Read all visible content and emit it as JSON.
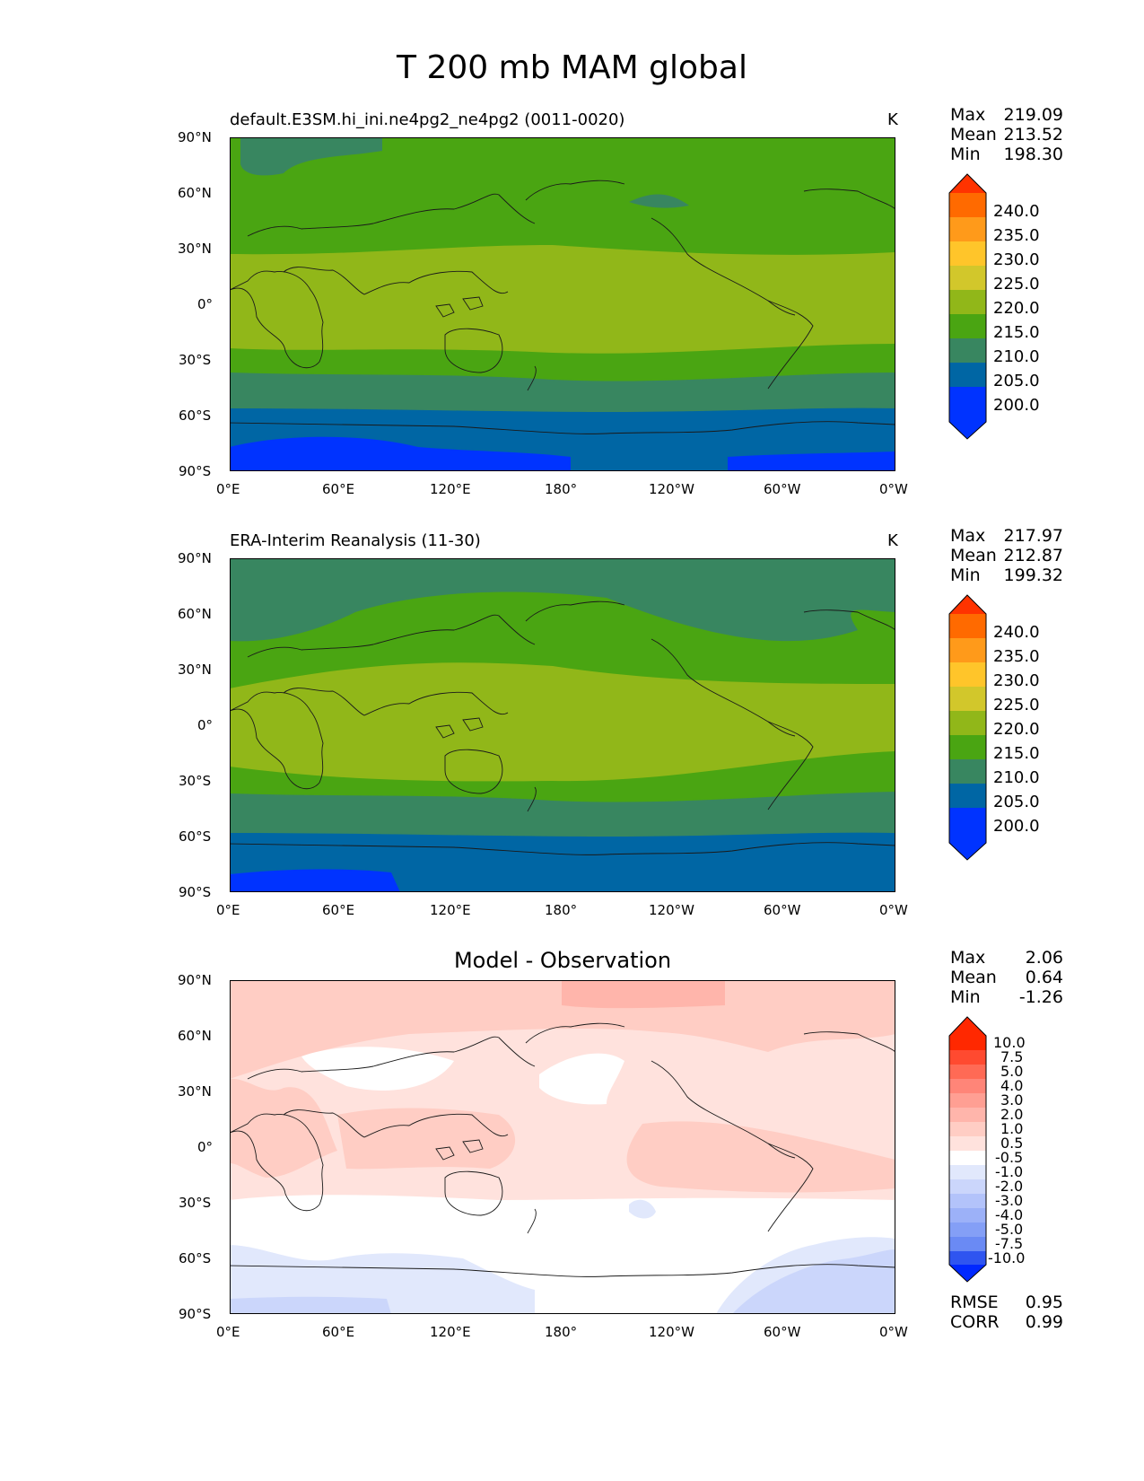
{
  "figure": {
    "title": "T 200 mb MAM global"
  },
  "axes": {
    "lat_ticks": [
      "90°N",
      "60°N",
      "30°N",
      "0°",
      "30°S",
      "60°S",
      "90°S"
    ],
    "lon_ticks": [
      "0°E",
      "60°E",
      "120°E",
      "180°",
      "120°W",
      "60°W",
      "0°W"
    ]
  },
  "panels": [
    {
      "title_left": "default.E3SM.hi_ini.ne4pg2_ne4pg2 (0011-0020)",
      "units": "K",
      "stats": {
        "max_label": "Max",
        "max": "219.09",
        "mean_label": "Mean",
        "mean": "213.52",
        "min_label": "Min",
        "min": "198.30"
      },
      "colorbar": {
        "labels": [
          "240.0",
          "235.0",
          "230.0",
          "225.0",
          "220.0",
          "215.0",
          "210.0",
          "205.0",
          "200.0"
        ]
      }
    },
    {
      "title_left": "ERA-Interim Reanalysis (11-30)",
      "units": "K",
      "stats": {
        "max_label": "Max",
        "max": "217.97",
        "mean_label": "Mean",
        "mean": "212.87",
        "min_label": "Min",
        "min": "199.32"
      },
      "colorbar": {
        "labels": [
          "240.0",
          "235.0",
          "230.0",
          "225.0",
          "220.0",
          "215.0",
          "210.0",
          "205.0",
          "200.0"
        ]
      }
    },
    {
      "title_center": "Model - Observation",
      "stats": {
        "max_label": "Max",
        "max": "2.06",
        "mean_label": "Mean",
        "mean": "0.64",
        "min_label": "Min",
        "min": "-1.26"
      },
      "colorbar": {
        "labels": [
          "10.0",
          "7.5",
          "5.0",
          "4.0",
          "3.0",
          "2.0",
          "1.0",
          "0.5",
          "-0.5",
          "-1.0",
          "-2.0",
          "-3.0",
          "-4.0",
          "-5.0",
          "-7.5",
          "-10.0"
        ]
      },
      "metrics": {
        "rmse_label": "RMSE",
        "rmse": "0.95",
        "corr_label": "CORR",
        "corr": "0.99"
      }
    }
  ],
  "colors": {
    "abs_levels": [
      "#ff3300",
      "#ff6a00",
      "#ff9a1a",
      "#ffc52a",
      "#d2c72b",
      "#91b719",
      "#4aa512",
      "#388660",
      "#0066a4",
      "#0033ff"
    ],
    "diff_levels": [
      "#ff2800",
      "#ff4a30",
      "#ff6a55",
      "#ff8578",
      "#ff9f93",
      "#ffb5ab",
      "#ffcdc4",
      "#ffe2dd",
      "#ffffff",
      "#e1e8fc",
      "#cbd6fb",
      "#b3c3fa",
      "#9cb1f8",
      "#849ff6",
      "#6a8af4",
      "#4f72f2",
      "#2f55f0",
      "#0028ff"
    ]
  }
}
